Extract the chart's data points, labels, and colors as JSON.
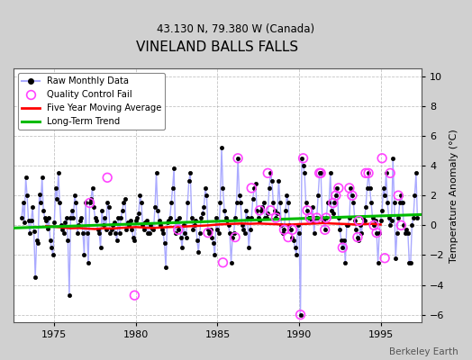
{
  "title": "VINELAND BALLS FALLS",
  "subtitle": "43.130 N, 79.380 W (Canada)",
  "ylabel": "Temperature Anomaly (°C)",
  "watermark": "Berkeley Earth",
  "xlim": [
    1972.5,
    1997.5
  ],
  "ylim": [
    -6.5,
    10.5
  ],
  "yticks": [
    -6,
    -4,
    -2,
    0,
    2,
    4,
    6,
    8,
    10
  ],
  "xticks": [
    1975,
    1980,
    1985,
    1990,
    1995
  ],
  "fig_bg_color": "#d0d0d0",
  "plot_bg_color": "#ffffff",
  "raw_line_color": "#aaaaff",
  "raw_marker_color": "#000000",
  "raw_lw": 1.0,
  "marker_size": 3,
  "qc_color": "#ff44ff",
  "qc_marker_size": 7,
  "ma_color": "#ff0000",
  "ma_lw": 1.8,
  "trend_color": "#00bb00",
  "trend_lw": 2.2,
  "trend_x": [
    1972.5,
    1997.5
  ],
  "trend_y": [
    -0.18,
    0.72
  ],
  "raw_times": [
    1973.0,
    1973.083,
    1973.167,
    1973.25,
    1973.333,
    1973.417,
    1973.5,
    1973.583,
    1973.667,
    1973.75,
    1973.833,
    1973.917,
    1974.0,
    1974.083,
    1974.167,
    1974.25,
    1974.333,
    1974.417,
    1974.5,
    1974.583,
    1974.667,
    1974.75,
    1974.833,
    1974.917,
    1975.0,
    1975.083,
    1975.167,
    1975.25,
    1975.333,
    1975.417,
    1975.5,
    1975.583,
    1975.667,
    1975.75,
    1975.833,
    1975.917,
    1976.0,
    1976.083,
    1976.167,
    1976.25,
    1976.333,
    1976.417,
    1976.5,
    1976.583,
    1976.667,
    1976.75,
    1976.833,
    1976.917,
    1977.0,
    1977.083,
    1977.167,
    1977.25,
    1977.333,
    1977.417,
    1977.5,
    1977.583,
    1977.667,
    1977.75,
    1977.833,
    1977.917,
    1978.0,
    1978.083,
    1978.167,
    1978.25,
    1978.333,
    1978.417,
    1978.5,
    1978.583,
    1978.667,
    1978.75,
    1978.833,
    1978.917,
    1979.0,
    1979.083,
    1979.167,
    1979.25,
    1979.333,
    1979.417,
    1979.5,
    1979.583,
    1979.667,
    1979.75,
    1979.833,
    1979.917,
    1980.0,
    1980.083,
    1980.167,
    1980.25,
    1980.333,
    1980.417,
    1980.5,
    1980.583,
    1980.667,
    1980.75,
    1980.833,
    1980.917,
    1981.0,
    1981.083,
    1981.167,
    1981.25,
    1981.333,
    1981.417,
    1981.5,
    1981.583,
    1981.667,
    1981.75,
    1981.833,
    1981.917,
    1982.0,
    1982.083,
    1982.167,
    1982.25,
    1982.333,
    1982.417,
    1982.5,
    1982.583,
    1982.667,
    1982.75,
    1982.833,
    1982.917,
    1983.0,
    1983.083,
    1983.167,
    1983.25,
    1983.333,
    1983.417,
    1983.5,
    1983.583,
    1983.667,
    1983.75,
    1983.833,
    1983.917,
    1984.0,
    1984.083,
    1984.167,
    1984.25,
    1984.333,
    1984.417,
    1984.5,
    1984.583,
    1984.667,
    1984.75,
    1984.833,
    1984.917,
    1985.0,
    1985.083,
    1985.167,
    1985.25,
    1985.333,
    1985.417,
    1985.5,
    1985.583,
    1985.667,
    1985.75,
    1985.833,
    1985.917,
    1986.0,
    1986.083,
    1986.167,
    1986.25,
    1986.333,
    1986.417,
    1986.5,
    1986.583,
    1986.667,
    1986.75,
    1986.833,
    1986.917,
    1987.0,
    1987.083,
    1987.167,
    1987.25,
    1987.333,
    1987.417,
    1987.5,
    1987.583,
    1987.667,
    1987.75,
    1987.833,
    1987.917,
    1988.0,
    1988.083,
    1988.167,
    1988.25,
    1988.333,
    1988.417,
    1988.5,
    1988.583,
    1988.667,
    1988.75,
    1988.833,
    1988.917,
    1989.0,
    1989.083,
    1989.167,
    1989.25,
    1989.333,
    1989.417,
    1989.5,
    1989.583,
    1989.667,
    1989.75,
    1989.833,
    1989.917,
    1990.0,
    1990.083,
    1990.167,
    1990.25,
    1990.333,
    1990.417,
    1990.5,
    1990.583,
    1990.667,
    1990.75,
    1990.833,
    1990.917,
    1991.0,
    1991.083,
    1991.167,
    1991.25,
    1991.333,
    1991.417,
    1991.5,
    1991.583,
    1991.667,
    1991.75,
    1991.833,
    1991.917,
    1992.0,
    1992.083,
    1992.167,
    1992.25,
    1992.333,
    1992.417,
    1992.5,
    1992.583,
    1992.667,
    1992.75,
    1992.833,
    1992.917,
    1993.0,
    1993.083,
    1993.167,
    1993.25,
    1993.333,
    1993.417,
    1993.5,
    1993.583,
    1993.667,
    1993.75,
    1993.833,
    1993.917,
    1994.0,
    1994.083,
    1994.167,
    1994.25,
    1994.333,
    1994.417,
    1994.5,
    1994.583,
    1994.667,
    1994.75,
    1994.833,
    1994.917,
    1995.0,
    1995.083,
    1995.167,
    1995.25,
    1995.333,
    1995.417,
    1995.5,
    1995.583,
    1995.667,
    1995.75,
    1995.833,
    1995.917,
    1996.0,
    1996.083,
    1996.167,
    1996.25,
    1996.333,
    1996.417,
    1996.5,
    1996.583,
    1996.667,
    1996.75,
    1996.833,
    1996.917,
    1997.0,
    1997.083,
    1997.167,
    1997.25
  ],
  "raw_values": [
    0.5,
    1.5,
    0.2,
    3.2,
    2.0,
    0.3,
    -0.5,
    0.3,
    1.2,
    -0.4,
    -3.5,
    -1.0,
    -1.2,
    2.1,
    1.5,
    3.2,
    1.0,
    0.5,
    0.3,
    -0.2,
    0.5,
    -1.0,
    -1.5,
    -2.0,
    0.2,
    2.5,
    1.8,
    3.5,
    1.5,
    0.0,
    -0.3,
    -0.5,
    0.2,
    0.5,
    -1.0,
    -4.7,
    0.5,
    1.0,
    0.5,
    2.0,
    1.5,
    -0.5,
    0.0,
    0.3,
    0.5,
    -0.5,
    -2.0,
    1.5,
    -0.5,
    -2.5,
    1.5,
    1.8,
    2.5,
    1.2,
    0.5,
    0.3,
    -0.3,
    -0.5,
    -1.5,
    1.0,
    0.0,
    0.5,
    -0.3,
    1.5,
    1.2,
    -0.5,
    -0.3,
    0.0,
    0.2,
    -0.5,
    -1.0,
    0.5,
    -0.5,
    0.5,
    1.0,
    1.5,
    1.8,
    -0.3,
    0.2,
    0.0,
    0.3,
    -0.3,
    -0.8,
    -1.0,
    0.3,
    0.5,
    0.8,
    2.0,
    1.5,
    0.0,
    -0.3,
    0.2,
    0.3,
    -0.5,
    -0.5,
    0.0,
    -0.2,
    -0.3,
    1.2,
    3.5,
    1.0,
    0.3,
    0.0,
    -0.3,
    -0.5,
    -1.2,
    -2.8,
    0.2,
    0.3,
    0.5,
    1.5,
    2.5,
    3.8,
    -0.5,
    0.3,
    -0.3,
    0.5,
    -0.8,
    -1.5,
    0.0,
    -0.5,
    -0.8,
    1.5,
    3.0,
    3.5,
    0.5,
    -0.3,
    0.0,
    0.3,
    -1.0,
    -1.8,
    -0.5,
    0.5,
    0.8,
    1.2,
    2.5,
    2.0,
    -0.3,
    -0.5,
    -0.3,
    -0.8,
    -1.2,
    -2.0,
    0.5,
    -0.3,
    -0.5,
    1.5,
    5.2,
    2.5,
    1.0,
    0.5,
    0.3,
    0.0,
    -0.5,
    -2.5,
    -0.8,
    -0.5,
    0.5,
    1.5,
    4.5,
    2.0,
    1.5,
    0.0,
    -0.3,
    -0.5,
    1.0,
    0.5,
    -1.5,
    -0.3,
    0.5,
    1.8,
    2.5,
    2.8,
    1.0,
    0.5,
    0.3,
    1.0,
    1.2,
    1.5,
    0.5,
    0.5,
    0.8,
    2.5,
    3.5,
    3.0,
    1.5,
    1.0,
    0.5,
    0.8,
    3.0,
    1.5,
    0.0,
    -0.5,
    -0.3,
    1.0,
    2.0,
    1.5,
    0.0,
    -0.3,
    -0.8,
    -1.0,
    -1.5,
    -2.0,
    0.0,
    -0.5,
    -6.0,
    4.5,
    4.0,
    3.5,
    1.5,
    1.0,
    0.5,
    0.5,
    0.3,
    1.2,
    -0.5,
    0.5,
    0.5,
    2.0,
    3.5,
    3.5,
    0.5,
    0.3,
    -0.3,
    0.5,
    1.5,
    1.5,
    3.5,
    1.0,
    0.8,
    1.5,
    2.0,
    2.5,
    0.5,
    -0.3,
    -1.0,
    -1.5,
    -1.0,
    -2.5,
    0.0,
    0.0,
    0.5,
    2.5,
    2.0,
    1.5,
    0.3,
    -0.3,
    -0.8,
    -1.0,
    0.0,
    -0.5,
    0.5,
    0.3,
    1.2,
    2.5,
    3.5,
    2.5,
    1.5,
    0.5,
    0.0,
    0.3,
    -0.5,
    -2.5,
    -0.5,
    0.3,
    1.0,
    2.5,
    2.0,
    3.5,
    1.5,
    0.5,
    0.0,
    0.3,
    4.5,
    1.5,
    -2.2,
    -0.5,
    0.5,
    1.5,
    2.0,
    1.5,
    0.0,
    -0.5,
    -0.3,
    -0.5,
    -2.5,
    -2.5,
    0.0,
    0.5,
    2.0,
    3.5,
    0.5
  ],
  "qc_times": [
    1977.167,
    1978.25,
    1979.917,
    1982.583,
    1984.417,
    1985.333,
    1986.083,
    1986.25,
    1987.083,
    1987.583,
    1988.083,
    1988.25,
    1988.583,
    1989.083,
    1989.333,
    1989.583,
    1990.083,
    1990.25,
    1990.5,
    1990.667,
    1991.083,
    1991.25,
    1991.333,
    1991.583,
    1991.667,
    1992.083,
    1992.25,
    1992.417,
    1992.667,
    1993.083,
    1993.25,
    1993.583,
    1993.667,
    1994.083,
    1994.25,
    1994.583,
    1994.75,
    1995.083,
    1995.25,
    1995.583,
    1996.083,
    1996.25
  ],
  "qc_values": [
    1.5,
    3.2,
    -4.7,
    -0.3,
    -0.5,
    -2.5,
    -0.8,
    4.5,
    2.5,
    1.0,
    3.5,
    1.0,
    0.5,
    -0.3,
    -0.8,
    -0.3,
    -6.0,
    4.5,
    1.0,
    0.5,
    0.5,
    3.5,
    3.5,
    -0.3,
    0.5,
    1.5,
    2.0,
    2.5,
    -1.5,
    2.5,
    2.0,
    -0.8,
    0.3,
    3.5,
    3.5,
    0.0,
    -0.5,
    4.5,
    -2.2,
    3.5,
    2.0,
    0.0
  ],
  "ma_times": [
    1974.5,
    1975.0,
    1975.5,
    1976.0,
    1976.5,
    1977.0,
    1977.5,
    1978.0,
    1978.5,
    1979.0,
    1979.5,
    1980.0,
    1980.5,
    1981.0,
    1981.5,
    1982.0,
    1982.5,
    1983.0,
    1983.5,
    1984.0,
    1984.5,
    1985.0,
    1985.5,
    1986.0,
    1986.5,
    1987.0,
    1987.5,
    1988.0,
    1988.5,
    1989.0,
    1989.5,
    1990.0,
    1990.5,
    1991.0,
    1991.5,
    1992.0,
    1992.5,
    1993.0,
    1993.5,
    1994.0,
    1994.5,
    1995.0
  ],
  "ma_values": [
    -0.05,
    -0.1,
    -0.15,
    -0.2,
    -0.18,
    -0.22,
    -0.25,
    -0.2,
    -0.22,
    -0.18,
    -0.15,
    -0.12,
    -0.15,
    -0.18,
    -0.15,
    -0.12,
    -0.1,
    -0.08,
    -0.05,
    -0.03,
    0.0,
    0.05,
    0.08,
    0.1,
    0.12,
    0.1,
    0.12,
    0.1,
    0.08,
    0.05,
    0.05,
    0.08,
    0.1,
    0.12,
    0.15,
    0.12,
    0.1,
    0.08,
    0.05,
    0.08,
    0.1,
    0.05
  ]
}
